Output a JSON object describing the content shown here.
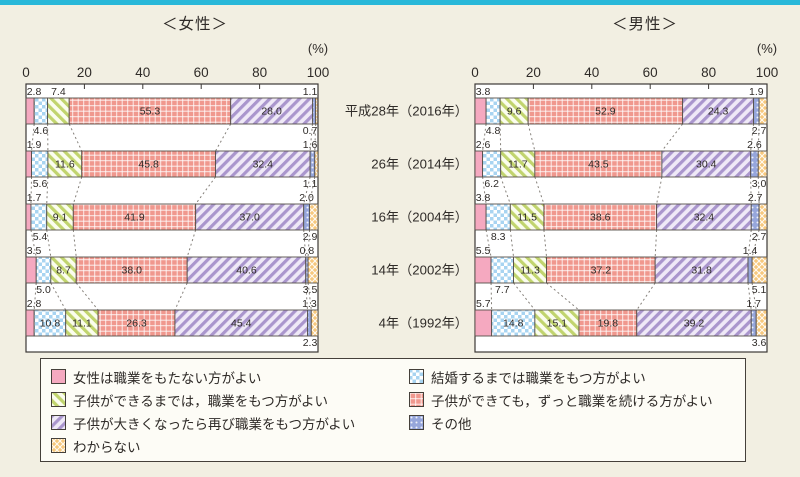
{
  "page": {
    "background": "#f2efe2",
    "accent_bar_color": "#29b8d9"
  },
  "chart_data": {
    "type": "bar",
    "orientation": "horizontal-stacked",
    "unit_label": "(%)",
    "xlim": [
      0,
      100
    ],
    "x_ticks": [
      0,
      20,
      40,
      60,
      80,
      100
    ],
    "grid": false,
    "legend_position": "bottom-box-two-columns",
    "categories": [
      "平成28年（2016年）",
      "26年（2014年）",
      "16年（2004年）",
      "14年（2002年）",
      "4年（1992年）"
    ],
    "segments": [
      {
        "name": "女性は職業をもたない方がよい",
        "color": "#f5a9c0",
        "pattern": "solid",
        "pattern_bg": "#f5a9c0"
      },
      {
        "name": "結婚するまでは職業をもつ方がよい",
        "color": "#a8d4f1",
        "pattern": "check",
        "pattern_bg": "#ffffff"
      },
      {
        "name": "子供ができるまでは，職業をもつ方がよい",
        "color": "#c1d46e",
        "pattern": "stripe-down",
        "pattern_bg": "#fbfdee"
      },
      {
        "name": "子供ができても，ずっと職業を続ける方がよい",
        "color": "#f0988e",
        "pattern": "grid",
        "pattern_bg": "#f0988e"
      },
      {
        "name": "子供が大きくなったら再び職業をもつ方がよい",
        "color": "#aa96cd",
        "pattern": "stripe-up",
        "pattern_bg": "#efe9f7"
      },
      {
        "name": "その他",
        "color": "#96a6db",
        "pattern": "dots",
        "pattern_bg": "#96a6db"
      },
      {
        "name": "わからない",
        "color": "#f7c87d",
        "pattern": "crosshatch",
        "pattern_bg": "#f7c87d"
      }
    ],
    "panels": [
      {
        "title": "＜女性＞",
        "rows": [
          [
            2.8,
            4.6,
            7.4,
            55.3,
            28.0,
            1.1,
            0.7
          ],
          [
            1.9,
            5.6,
            11.6,
            45.8,
            32.4,
            1.6,
            1.1
          ],
          [
            1.7,
            5.4,
            9.1,
            41.9,
            37.0,
            2.0,
            2.9
          ],
          [
            3.5,
            5.0,
            8.7,
            38.0,
            40.6,
            0.8,
            3.5
          ],
          [
            2.8,
            10.8,
            11.1,
            26.3,
            45.4,
            1.3,
            2.3
          ]
        ]
      },
      {
        "title": "＜男性＞",
        "rows": [
          [
            3.8,
            4.8,
            9.6,
            52.9,
            24.3,
            1.9,
            2.7
          ],
          [
            2.6,
            6.2,
            11.7,
            43.5,
            30.4,
            2.6,
            3.0
          ],
          [
            3.8,
            8.3,
            11.5,
            38.6,
            32.4,
            2.7,
            2.7
          ],
          [
            5.5,
            7.7,
            11.3,
            37.2,
            31.8,
            1.4,
            5.1
          ],
          [
            5.7,
            14.8,
            15.1,
            19.8,
            39.2,
            1.7,
            3.6
          ]
        ]
      }
    ]
  },
  "legend": {
    "columns": [
      [
        0,
        2,
        4,
        6
      ],
      [
        1,
        3,
        5
      ]
    ]
  }
}
